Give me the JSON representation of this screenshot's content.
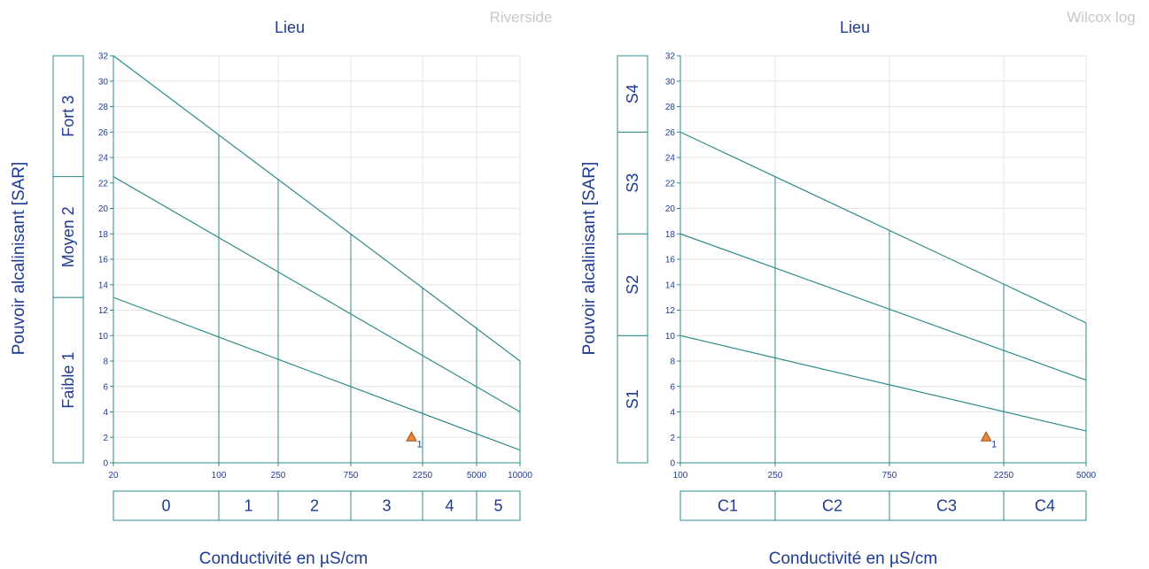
{
  "colors": {
    "line": "#2e8b8b",
    "grid": "#e3e3e3",
    "text": "#1f3a93",
    "point_fill": "#e8883a",
    "point_stroke": "#a04a10",
    "watermark": "#c8c8c8"
  },
  "chart_data": [
    {
      "type": "scatter",
      "title": "Lieu",
      "watermark": "Riverside",
      "xlabel": "Conductivité en µS/cm",
      "ylabel": "Pouvoir alcalinisant [SAR]",
      "x_ticks": [
        "20",
        "100",
        "250",
        "750",
        "2250",
        "5000",
        "10000"
      ],
      "y_ticks": [
        "0",
        "2",
        "4",
        "6",
        "8",
        "10",
        "12",
        "14",
        "16",
        "18",
        "20",
        "22",
        "24",
        "26",
        "28",
        "30",
        "32"
      ],
      "ylim": [
        0,
        32
      ],
      "grid": true,
      "x_classes": [
        {
          "label": "0",
          "from": "20",
          "to": "100"
        },
        {
          "label": "1",
          "from": "100",
          "to": "250"
        },
        {
          "label": "2",
          "from": "250",
          "to": "750"
        },
        {
          "label": "3",
          "from": "750",
          "to": "2250"
        },
        {
          "label": "4",
          "from": "2250",
          "to": "5000"
        },
        {
          "label": "5",
          "from": "5000",
          "to": "10000"
        }
      ],
      "y_classes": [
        {
          "label": "Faible  1",
          "from": 0,
          "to": 13
        },
        {
          "label": "Moyen  2",
          "from": 13,
          "to": 22.5
        },
        {
          "label": "Fort  3",
          "from": 22.5,
          "to": 32
        }
      ],
      "boundary_lines": [
        {
          "x0": "20",
          "y0": 32,
          "x1": "10000",
          "y1": 8
        },
        {
          "x0": "20",
          "y0": 22.5,
          "x1": "10000",
          "y1": 4
        },
        {
          "x0": "20",
          "y0": 13,
          "x1": "10000",
          "y1": 1
        }
      ],
      "class_dividers": [
        "100",
        "250",
        "750",
        "2250",
        "5000"
      ],
      "points": [
        {
          "label": "1",
          "x": 1900,
          "y": 2.0
        }
      ]
    },
    {
      "type": "scatter",
      "title": "Lieu",
      "watermark": "Wilcox log",
      "xlabel": "Conductivité en µS/cm",
      "ylabel": "Pouvoir alcalinisant [SAR]",
      "x_ticks": [
        "100",
        "250",
        "750",
        "2250",
        "5000"
      ],
      "y_ticks": [
        "0",
        "2",
        "4",
        "6",
        "8",
        "10",
        "12",
        "14",
        "16",
        "18",
        "20",
        "22",
        "24",
        "26",
        "28",
        "30",
        "32"
      ],
      "ylim": [
        0,
        32
      ],
      "grid": true,
      "x_classes": [
        {
          "label": "C1",
          "from": "100",
          "to": "250"
        },
        {
          "label": "C2",
          "from": "250",
          "to": "750"
        },
        {
          "label": "C3",
          "from": "750",
          "to": "2250"
        },
        {
          "label": "C4",
          "from": "2250",
          "to": "5000"
        }
      ],
      "y_classes": [
        {
          "label": "S1",
          "from": 0,
          "to": 10
        },
        {
          "label": "S2",
          "from": 10,
          "to": 18
        },
        {
          "label": "S3",
          "from": 18,
          "to": 26
        },
        {
          "label": "S4",
          "from": 26,
          "to": 32
        }
      ],
      "boundary_lines": [
        {
          "x0": "100",
          "y0": 26,
          "x1": "5000",
          "y1": 11
        },
        {
          "x0": "100",
          "y0": 18,
          "x1": "5000",
          "y1": 6.5
        },
        {
          "x0": "100",
          "y0": 10,
          "x1": "5000",
          "y1": 2.5
        }
      ],
      "class_dividers": [
        "250",
        "750",
        "2250"
      ],
      "points": [
        {
          "label": "1",
          "x": 1900,
          "y": 2.0
        }
      ]
    }
  ]
}
